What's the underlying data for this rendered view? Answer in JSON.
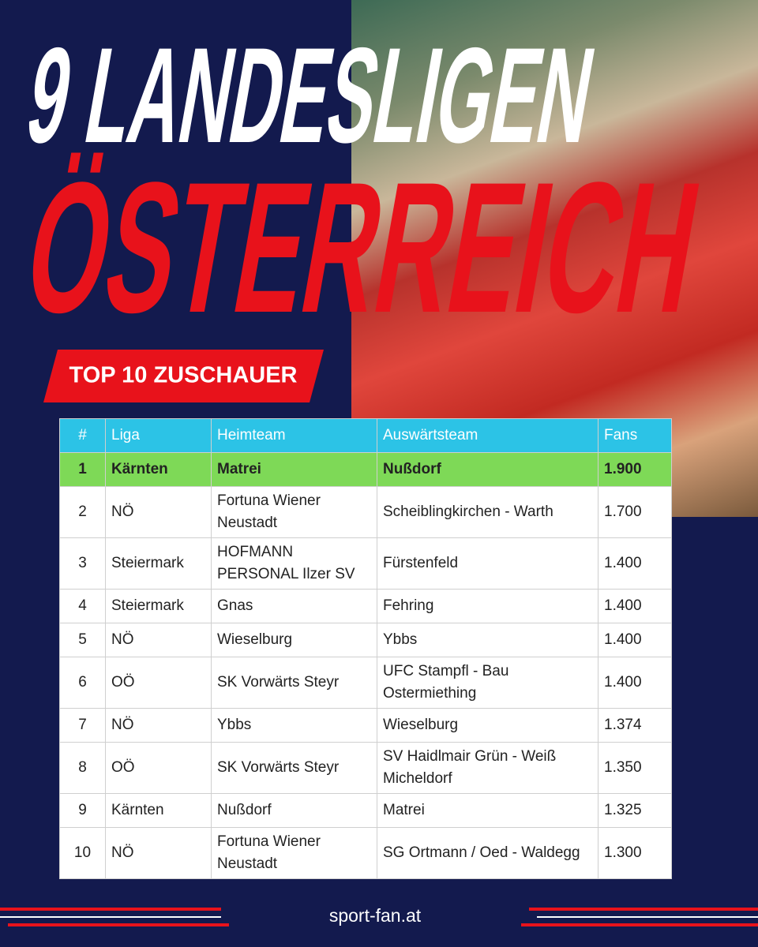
{
  "header": {
    "line1": "9 LANDESLIGEN",
    "line2": "ÖSTERREICH",
    "badge": "TOP 10 ZUSCHAUER"
  },
  "table": {
    "columns": [
      "#",
      "Liga",
      "Heimteam",
      "Auswärtsteam",
      "Fans"
    ],
    "rows": [
      [
        "1",
        "Kärnten",
        "Matrei",
        "Nußdorf",
        "1.900"
      ],
      [
        "2",
        "NÖ",
        "Fortuna Wiener Neustadt",
        "Scheiblingkirchen - Warth",
        "1.700"
      ],
      [
        "3",
        "Steiermark",
        "HOFMANN PERSONAL Ilzer SV",
        "Fürstenfeld",
        "1.400"
      ],
      [
        "4",
        "Steiermark",
        "Gnas",
        "Fehring",
        "1.400"
      ],
      [
        "5",
        "NÖ",
        "Wieselburg",
        "Ybbs",
        "1.400"
      ],
      [
        "6",
        "OÖ",
        "SK Vorwärts Steyr",
        "UFC Stampfl - Bau Ostermiething",
        "1.400"
      ],
      [
        "7",
        "NÖ",
        "Ybbs",
        "Wieselburg",
        "1.374"
      ],
      [
        "8",
        "OÖ",
        "SK Vorwärts Steyr",
        "SV Haidlmair Grün - Weiß Micheldorf",
        "1.350"
      ],
      [
        "9",
        "Kärnten",
        "Nußdorf",
        "Matrei",
        "1.325"
      ],
      [
        "10",
        "NÖ",
        "Fortuna Wiener Neustadt",
        "SG Ortmann / Oed - Waldegg",
        "1.300"
      ]
    ]
  },
  "footer": {
    "site": "sport-fan.at"
  }
}
